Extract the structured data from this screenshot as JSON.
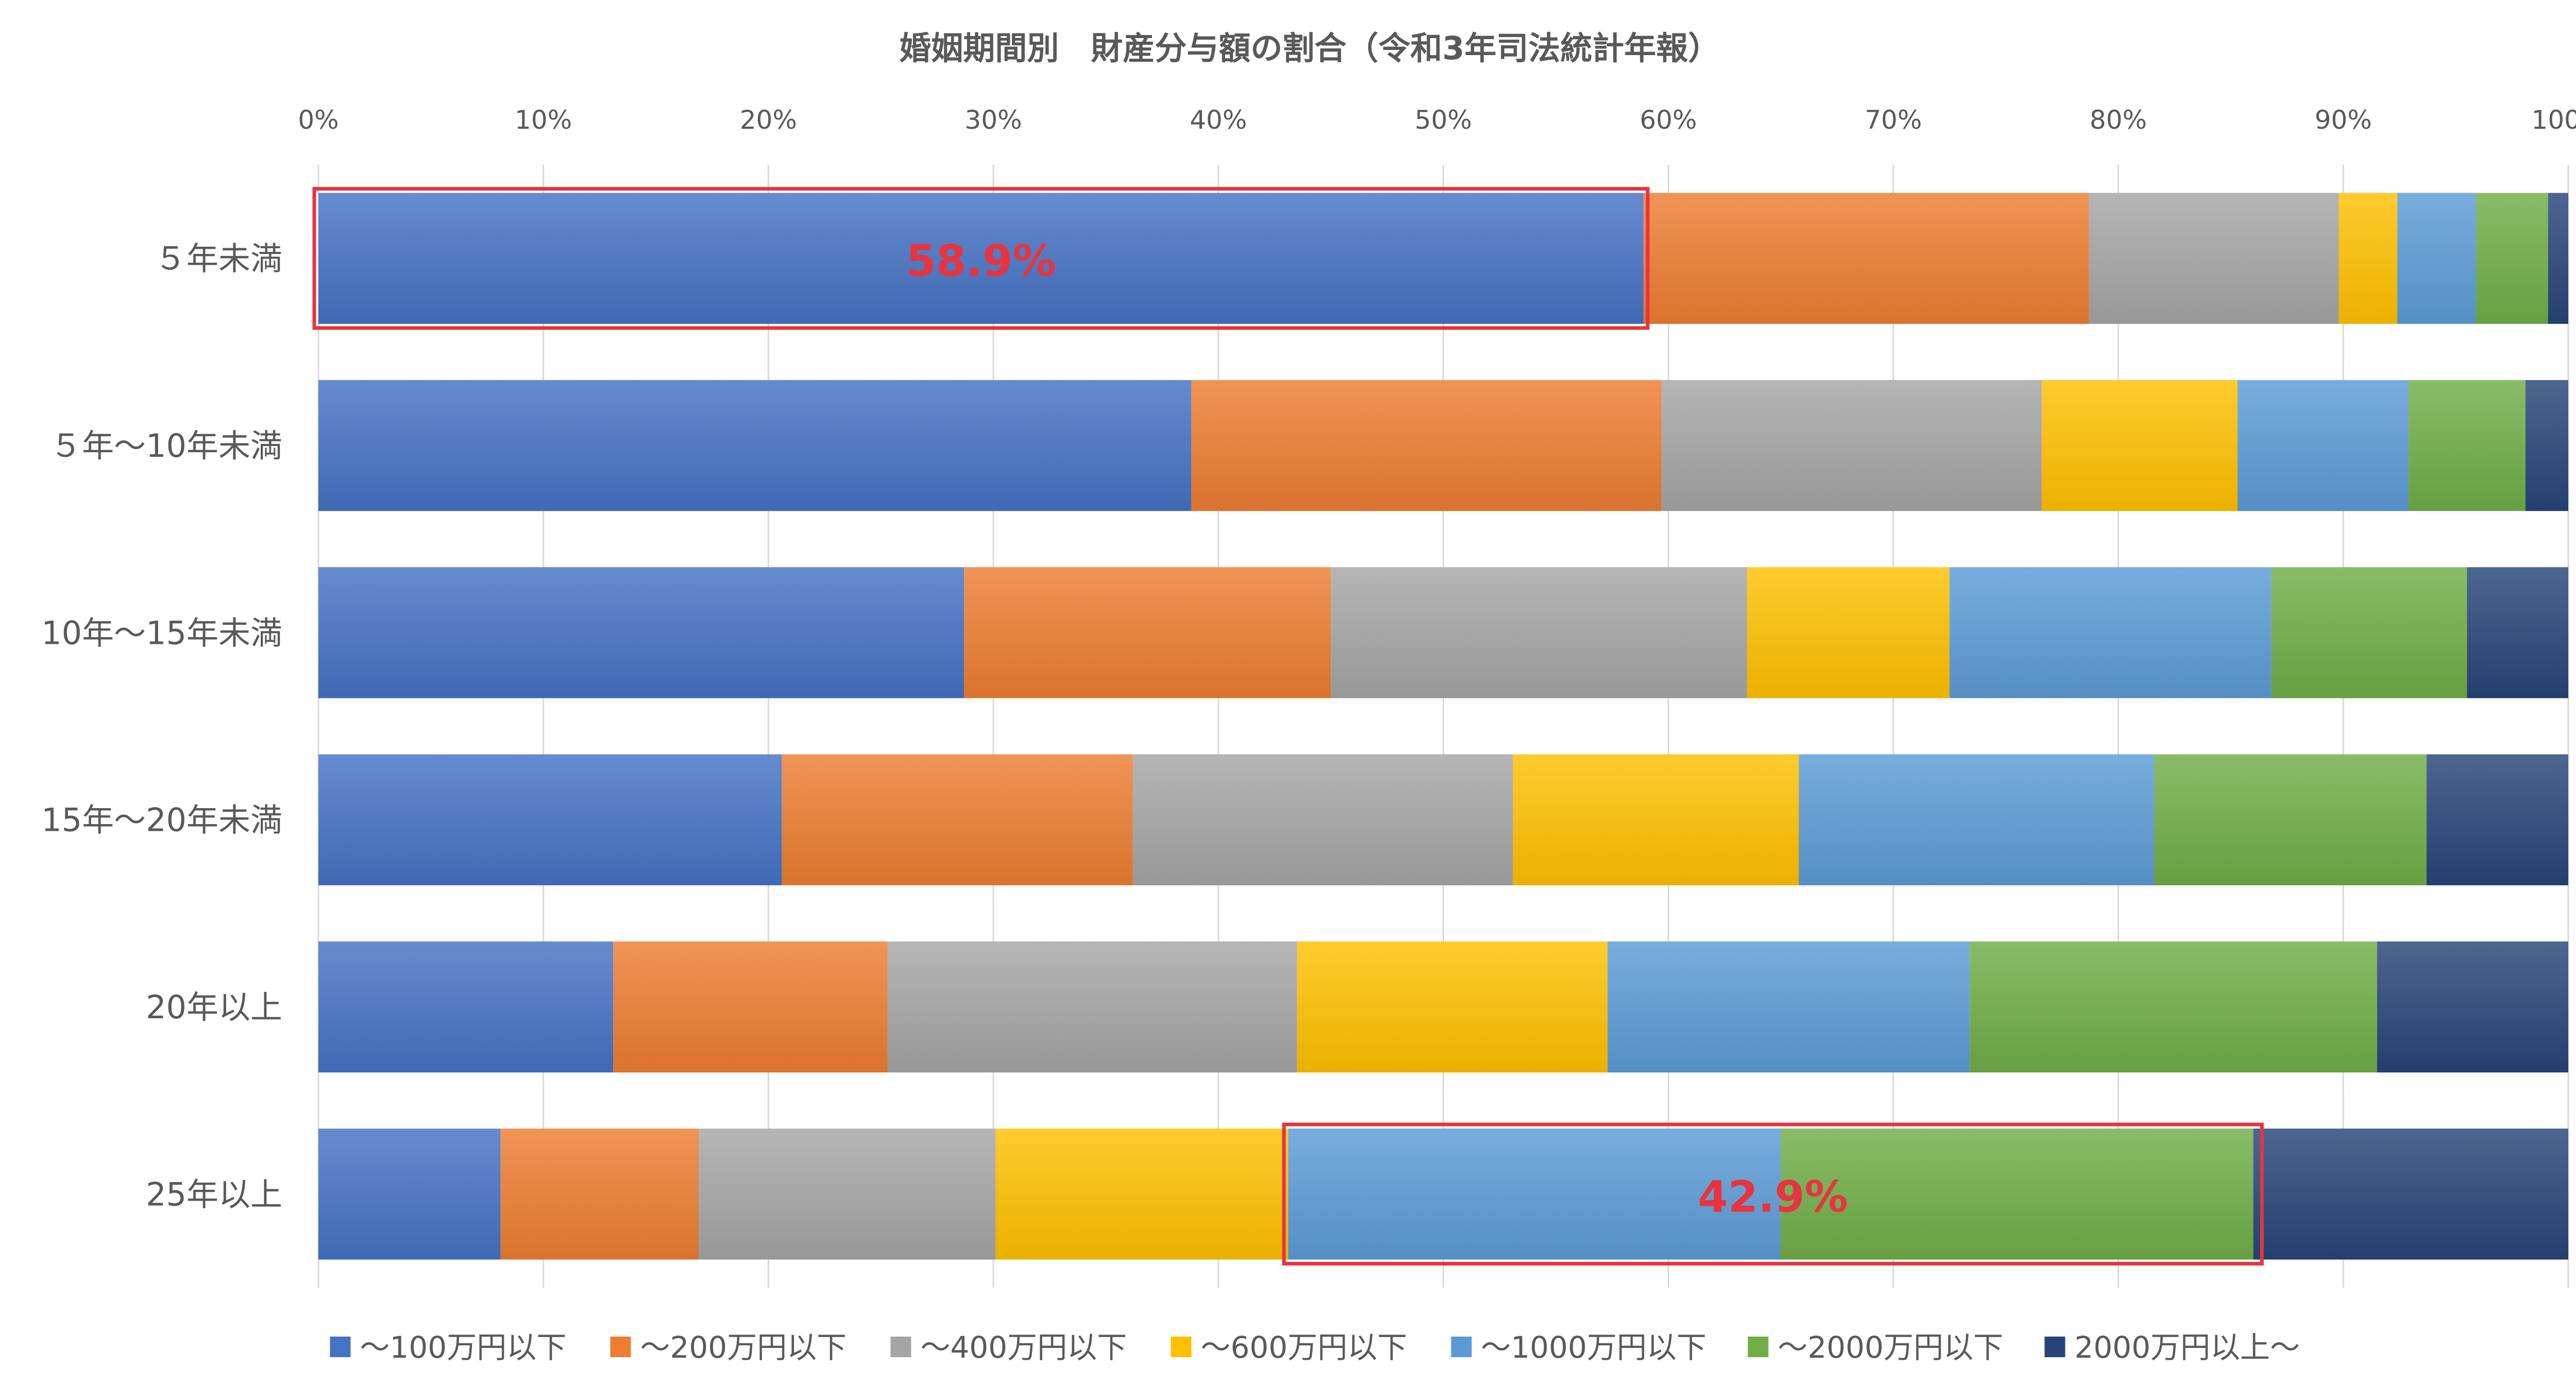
{
  "chart_data": {
    "type": "bar",
    "orientation": "horizontal",
    "stacked": "percent",
    "title": "婚姻期間別　財産分与額の割合（令和3年司法統計年報）",
    "xlim": [
      0,
      100
    ],
    "xticks": [
      "0%",
      "10%",
      "20%",
      "30%",
      "40%",
      "50%",
      "60%",
      "70%",
      "80%",
      "90%",
      "100%"
    ],
    "grid": "vertical",
    "legend_position": "bottom",
    "categories": [
      "５年未満",
      "５年～10年未満",
      "10年～15年未満",
      "15年～20年未満",
      "20年以上",
      "25年以上"
    ],
    "series": [
      {
        "name": "～100万円以下",
        "color": "#4472c4",
        "values": [
          58.9,
          38.8,
          28.7,
          20.6,
          13.1,
          8.1
        ]
      },
      {
        "name": "～200万円以下",
        "color": "#ed7d31",
        "values": [
          19.8,
          20.9,
          16.3,
          15.6,
          12.2,
          8.8
        ]
      },
      {
        "name": "～400万円以下",
        "color": "#a5a5a5",
        "values": [
          11.1,
          16.9,
          18.5,
          16.9,
          18.2,
          13.2
        ]
      },
      {
        "name": "～600万円以下",
        "color": "#ffc000",
        "values": [
          2.6,
          8.7,
          9.0,
          12.7,
          13.8,
          13.0
        ]
      },
      {
        "name": "～1000万円以下",
        "color": "#5b9bd5",
        "values": [
          3.5,
          7.6,
          14.3,
          15.8,
          16.1,
          21.9
        ]
      },
      {
        "name": "～2000万円以下",
        "color": "#70ad47",
        "values": [
          3.2,
          5.2,
          8.7,
          12.1,
          18.1,
          21.0
        ]
      },
      {
        "name": "2000万円以上～",
        "color": "#264478",
        "values": [
          0.9,
          1.9,
          4.5,
          6.3,
          8.5,
          14.0
        ]
      }
    ],
    "annotations": [
      {
        "text": "58.9%",
        "category_index": 0,
        "from": 0,
        "to": 58.9,
        "color": "#e7343f"
      },
      {
        "text": "42.9%",
        "category_index": 5,
        "from": 43.1,
        "to": 86.2,
        "color": "#e7343f"
      }
    ]
  }
}
